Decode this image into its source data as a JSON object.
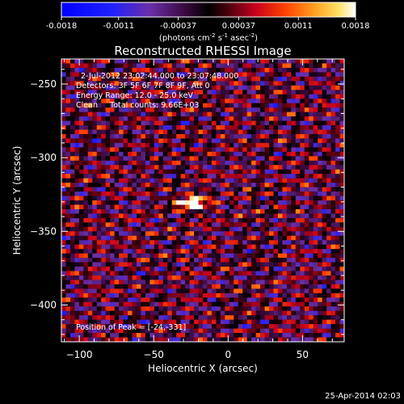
{
  "chart_data": {
    "type": "heatmap",
    "title": "Reconstructed RHESSI Image",
    "xlabel": "Heliocentric X (arcsec)",
    "ylabel": "Heliocentric Y (arcsec)",
    "xlim": [
      -112,
      78
    ],
    "ylim": [
      -425,
      -233
    ],
    "xticks": [
      -100,
      -50,
      0,
      50
    ],
    "yticks": [
      -250,
      -300,
      -350,
      -400
    ],
    "colorbar": {
      "ticks": [
        "-0.0018",
        "-0.0011",
        "-0.00037",
        "0.00037",
        "0.0011",
        "0.0018"
      ],
      "range": [
        -0.0018,
        0.0018
      ],
      "label_prefix": "(photons cm",
      "label_sup1": "-2",
      "label_mid": " s",
      "label_sup2": "-1",
      "label_mid2": " asec",
      "label_sup3": "-2",
      "label_suffix": ")"
    },
    "annotations": [
      "2-Jul-2012 23:02:44.000 to 23:07:48.000",
      "Detectors: 3F 5F 6F 7F 8F 9F, Att 0",
      "Energy Range: 12.0 - 25.0 keV",
      "Clean     Total counts: 9.66E+03"
    ],
    "peak_label": "Position of Peak = [-24,-331]",
    "peak": {
      "x": -24,
      "y": -331
    },
    "stripe_angle_deg": 13,
    "colors": {
      "background": "#000000",
      "text": "#ffffff",
      "accent_peak": "#fff7c0"
    }
  },
  "footer": {
    "timestamp": "25-Apr-2014 02:03"
  }
}
